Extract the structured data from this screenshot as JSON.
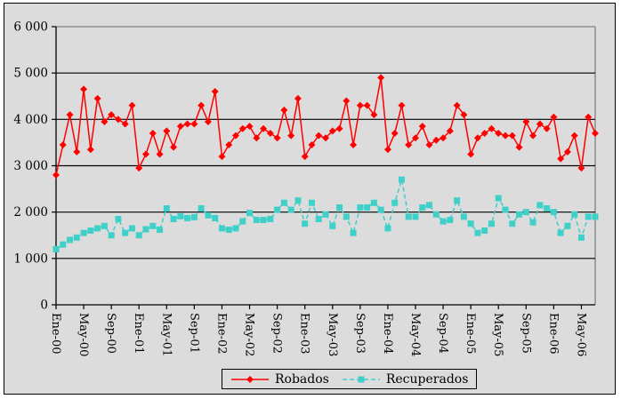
{
  "window": {
    "background_color": "#dcdcdc",
    "outer_border_color": "#000000",
    "plot_border_color": "#808080",
    "gridline_color": "#000000"
  },
  "legend": {
    "items": [
      {
        "id": "robados",
        "label": "Robados",
        "color": "#ff0000",
        "marker": "diamond",
        "line_style": "solid"
      },
      {
        "id": "recuperados",
        "label": "Recuperados",
        "color": "#3fd0ca",
        "marker": "square",
        "line_style": "dashed"
      }
    ]
  },
  "chart_data": {
    "type": "line",
    "title": "",
    "xlabel": "",
    "ylabel": "",
    "ylim": [
      0,
      6000
    ],
    "grid": true,
    "legend_position": "bottom-center",
    "x_tick_every": 4,
    "y_tick_step": 1000,
    "y_tick_labels": [
      "0",
      "1 000",
      "2 000",
      "3 000",
      "4 000",
      "5 000",
      "6 000"
    ],
    "categories": [
      "Ene-00",
      "Feb-00",
      "Mar-00",
      "Abr-00",
      "May-00",
      "Jun-00",
      "Jul-00",
      "Ago-00",
      "Sep-00",
      "Oct-00",
      "Nov-00",
      "Dic-00",
      "Ene-01",
      "Feb-01",
      "Mar-01",
      "Abr-01",
      "May-01",
      "Jun-01",
      "Jul-01",
      "Ago-01",
      "Sep-01",
      "Oct-01",
      "Nov-01",
      "Dic-01",
      "Ene-02",
      "Feb-02",
      "Mar-02",
      "Abr-02",
      "May-02",
      "Jun-02",
      "Jul-02",
      "Ago-02",
      "Sep-02",
      "Oct-02",
      "Nov-02",
      "Dic-02",
      "Ene-03",
      "Feb-03",
      "Mar-03",
      "Abr-03",
      "May-03",
      "Jun-03",
      "Jul-03",
      "Ago-03",
      "Sep-03",
      "Oct-03",
      "Nov-03",
      "Dic-03",
      "Ene-04",
      "Feb-04",
      "Mar-04",
      "Abr-04",
      "May-04",
      "Jun-04",
      "Jul-04",
      "Ago-04",
      "Sep-04",
      "Oct-04",
      "Nov-04",
      "Dic-04",
      "Ene-05",
      "Feb-05",
      "Mar-05",
      "Abr-05",
      "May-05",
      "Jun-05",
      "Jul-05",
      "Ago-05",
      "Sep-05",
      "Oct-05",
      "Nov-05",
      "Dic-05",
      "Ene-06",
      "Feb-06",
      "Mar-06",
      "Abr-06",
      "May-06",
      "Jun-06",
      "Jul-06"
    ],
    "series": [
      {
        "id": "robados",
        "name": "Robados",
        "color": "#ff0000",
        "marker": "diamond",
        "dash": null,
        "values": [
          2800,
          3450,
          4100,
          3300,
          4650,
          3350,
          4450,
          3950,
          4100,
          4000,
          3900,
          4300,
          2950,
          3250,
          3700,
          3250,
          3750,
          3400,
          3850,
          3900,
          3900,
          4300,
          3950,
          4600,
          3200,
          3450,
          3650,
          3800,
          3850,
          3600,
          3800,
          3700,
          3600,
          4200,
          3650,
          4450,
          3200,
          3450,
          3650,
          3600,
          3750,
          3800,
          4400,
          3450,
          4300,
          4300,
          4100,
          4900,
          3350,
          3700,
          4300,
          3450,
          3600,
          3850,
          3450,
          3550,
          3600,
          3750,
          4300,
          4100,
          3250,
          3600,
          3700,
          3800,
          3700,
          3650,
          3650,
          3400,
          3950,
          3650,
          3900,
          3800,
          4050,
          3150,
          3300,
          3650,
          2950,
          4050,
          3700
        ]
      },
      {
        "id": "recuperados",
        "name": "Recuperados",
        "color": "#3fd0ca",
        "marker": "square",
        "dash": "5,3",
        "values": [
          1200,
          1300,
          1400,
          1450,
          1550,
          1600,
          1650,
          1700,
          1500,
          1850,
          1550,
          1650,
          1500,
          1630,
          1700,
          1620,
          2080,
          1850,
          1910,
          1870,
          1890,
          2080,
          1930,
          1870,
          1650,
          1620,
          1650,
          1800,
          1980,
          1830,
          1830,
          1850,
          2050,
          2200,
          2050,
          2250,
          1750,
          2200,
          1850,
          1950,
          1700,
          2100,
          1900,
          1550,
          2100,
          2100,
          2200,
          2050,
          1650,
          2200,
          2700,
          1900,
          1900,
          2100,
          2150,
          1950,
          1800,
          1830,
          2250,
          1900,
          1750,
          1550,
          1600,
          1750,
          2300,
          2050,
          1750,
          1950,
          2000,
          1780,
          2150,
          2080,
          2000,
          1550,
          1700,
          1950,
          1450,
          1900,
          1900
        ]
      }
    ]
  }
}
